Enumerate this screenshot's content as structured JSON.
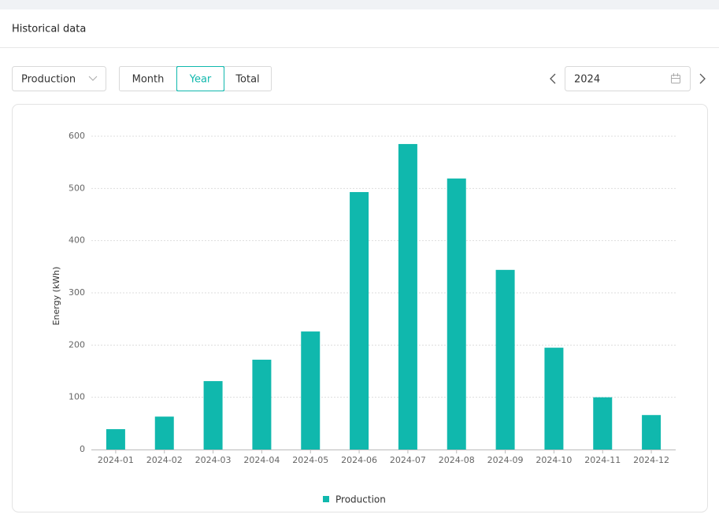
{
  "ui": {
    "title": "Historical data",
    "metric_select": "Production",
    "tabs": [
      "Month",
      "Year",
      "Total"
    ],
    "active_tab": 1,
    "year_input": "2024"
  },
  "chart_data": {
    "type": "bar",
    "y_label": "Energy  (kWh)",
    "categories": [
      "2024-01",
      "2024-02",
      "2024-03",
      "2024-04",
      "2024-05",
      "2024-06",
      "2024-07",
      "2024-08",
      "2024-09",
      "2024-10",
      "2024-11",
      "2024-12"
    ],
    "series": [
      {
        "name": "Production",
        "color": "#10b8ad",
        "values": [
          39,
          63,
          131,
          172,
          226,
          493,
          585,
          519,
          344,
          195,
          100,
          66
        ]
      }
    ],
    "ylim": [
      0,
      600
    ],
    "yticks": [
      0,
      100,
      200,
      300,
      400,
      500,
      600
    ],
    "grid": true,
    "legend": "bottom"
  }
}
